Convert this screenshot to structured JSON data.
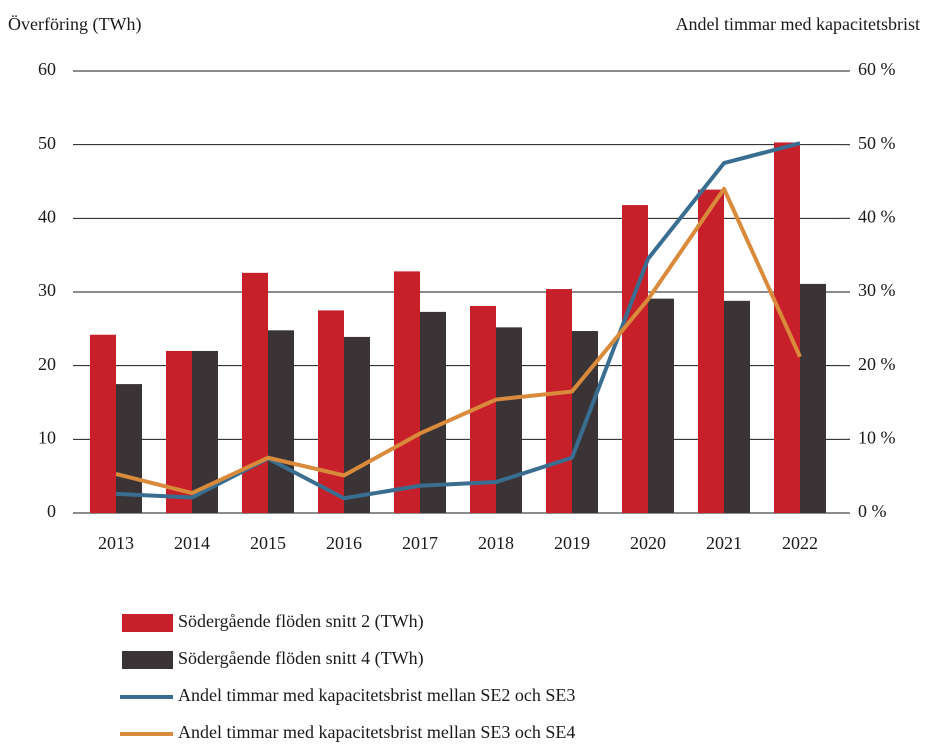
{
  "chart_data": {
    "type": "bar",
    "y_label": "Överföring (TWh)",
    "y2_label": "Andel timmar med kapacitetsbrist",
    "categories": [
      "2013",
      "2014",
      "2015",
      "2016",
      "2017",
      "2018",
      "2019",
      "2020",
      "2021",
      "2022"
    ],
    "ylim": [
      0,
      60
    ],
    "yticks": [
      0,
      10,
      20,
      30,
      40,
      50,
      60
    ],
    "y2lim": [
      0,
      60
    ],
    "y2ticks": [
      {
        "value": 0,
        "label": "0 %"
      },
      {
        "value": 10,
        "label": "10 %"
      },
      {
        "value": 20,
        "label": "20 %"
      },
      {
        "value": 30,
        "label": "30 %"
      },
      {
        "value": 40,
        "label": "40 %"
      },
      {
        "value": 50,
        "label": "50 %"
      },
      {
        "value": 60,
        "label": "60 %"
      }
    ],
    "grid": true,
    "series": [
      {
        "name": "Södergående flöden snitt 2 (TWh)",
        "type": "bar",
        "color": "#c8202a",
        "values": [
          24.2,
          22.0,
          32.6,
          27.5,
          32.8,
          28.1,
          30.4,
          41.8,
          43.9,
          50.3
        ]
      },
      {
        "name": "Södergående flöden snitt 4 (TWh)",
        "type": "bar",
        "color": "#3b3436",
        "values": [
          17.5,
          22.0,
          24.8,
          23.9,
          27.3,
          25.2,
          24.7,
          29.1,
          28.8,
          31.1
        ]
      },
      {
        "name": "Andel timmar med kapacitetsbrist mellan SE2 och SE3",
        "type": "line",
        "axis": "y2",
        "color": "#3a6e91",
        "values": [
          2.6,
          2.1,
          7.4,
          2.0,
          3.7,
          4.2,
          7.5,
          34.5,
          47.5,
          50.2
        ]
      },
      {
        "name": "Andel timmar med kapacitetsbrist mellan SE3 och SE4",
        "type": "line",
        "axis": "y2",
        "color": "#d98a3a",
        "values": [
          5.3,
          2.7,
          7.5,
          5.1,
          10.8,
          15.4,
          16.5,
          29.0,
          44.0,
          21.2
        ]
      }
    ]
  }
}
